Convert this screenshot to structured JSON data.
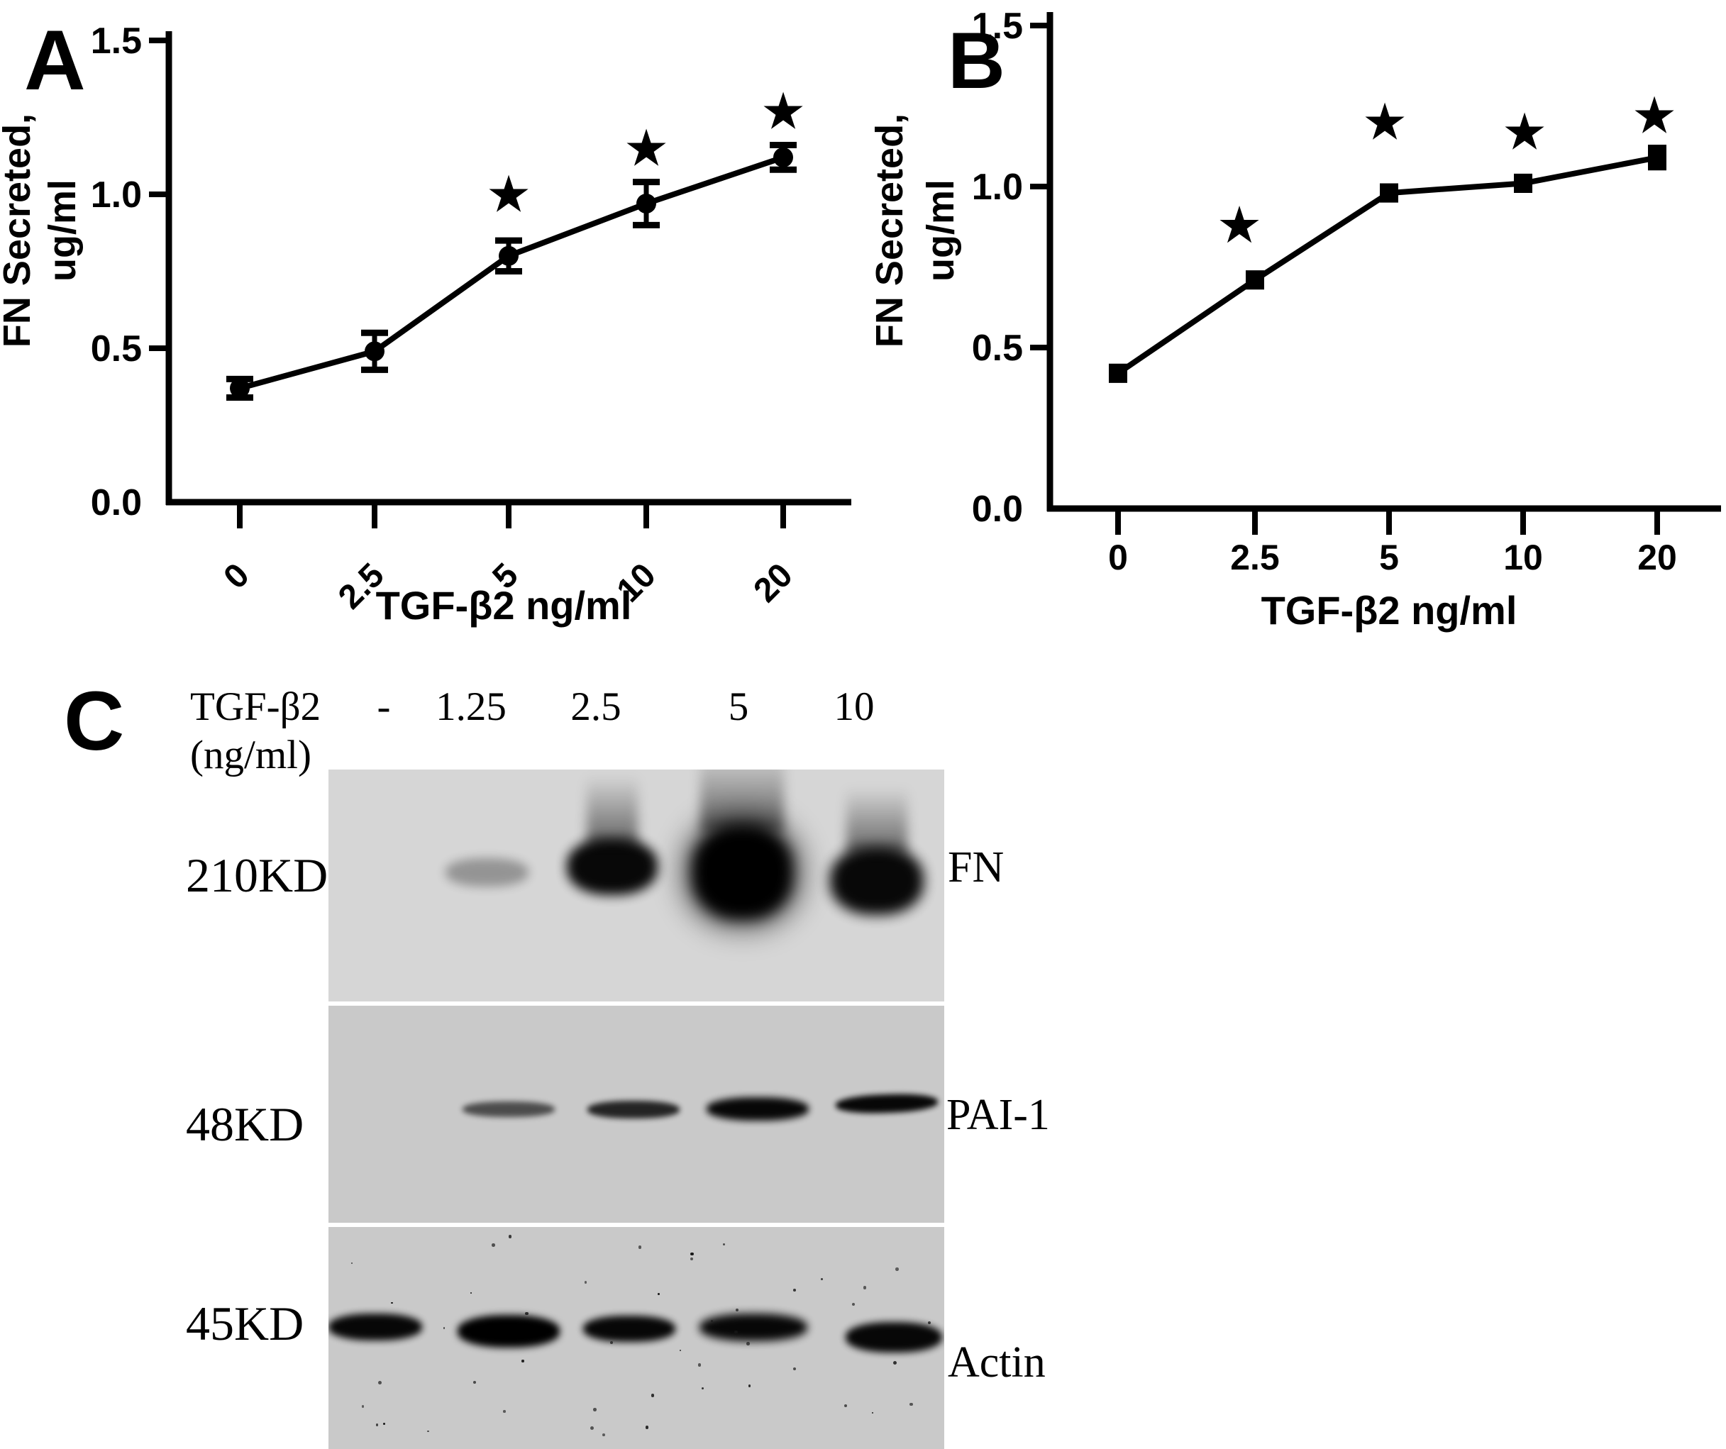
{
  "panels": {
    "A": {
      "label": "A"
    },
    "B": {
      "label": "B"
    },
    "C": {
      "label": "C",
      "treatment_label": "TGF-β2",
      "treatment_unit": "(ng/ml)",
      "doses": [
        "-",
        "1.25",
        "2.5",
        "5",
        "10"
      ],
      "blots": [
        {
          "marker_weight": "210KD",
          "protein": "FN",
          "background": "#d6d6d6",
          "band_intensities": [
            "none",
            "faint",
            "strong",
            "very-strong",
            "strong"
          ]
        },
        {
          "marker_weight": "48KD",
          "protein": "PAI-1",
          "background": "#c9c9c9",
          "band_intensities": [
            "none",
            "weak",
            "moderate",
            "strong",
            "strong"
          ]
        },
        {
          "marker_weight": "45KD",
          "protein": "Actin",
          "background": "#c9c9c9",
          "band_intensities": [
            "strong",
            "very-strong",
            "strong",
            "strong",
            "strong"
          ]
        }
      ]
    }
  },
  "chart_data": [
    {
      "panel": "A",
      "type": "line",
      "marker": "circle",
      "categories": [
        "0",
        "2.5",
        "5",
        "10",
        "20"
      ],
      "values": [
        0.37,
        0.49,
        0.8,
        0.97,
        1.12
      ],
      "errors": [
        0.03,
        0.06,
        0.05,
        0.07,
        0.04
      ],
      "significance_star_y": [
        null,
        null,
        1.0,
        1.15,
        1.27
      ],
      "xlabel": "TGF-β2 ng/ml",
      "ylabel_line1": "FN Secreted,",
      "ylabel_line2": "ug/ml",
      "ylim": [
        0,
        1.5
      ],
      "ytick_labels": [
        "0.0",
        "0.5",
        "1.0",
        "1.5"
      ],
      "ytick_values": [
        0,
        0.5,
        1.0,
        1.5
      ],
      "x_tick_rotation": 45,
      "grid": false,
      "legend": "none",
      "line_color": "#000000"
    },
    {
      "panel": "B",
      "type": "line",
      "marker": "square",
      "categories": [
        "0",
        "2.5",
        "5",
        "10",
        "20"
      ],
      "values": [
        0.42,
        0.71,
        0.98,
        1.01,
        1.09
      ],
      "errors": [
        0.02,
        0.02,
        0.02,
        0.02,
        0.03
      ],
      "significance_star_y": [
        null,
        0.88,
        1.2,
        1.17,
        1.22
      ],
      "xlabel": "TGF-β2 ng/ml",
      "ylabel_line1": "FN Secreted,",
      "ylabel_line2": "ug/ml",
      "ylim": [
        0,
        1.5
      ],
      "ytick_labels": [
        "0.0",
        "0.5",
        "1.0",
        "1.5"
      ],
      "ytick_values": [
        0,
        0.5,
        1.0,
        1.5
      ],
      "x_tick_rotation": 0,
      "grid": false,
      "legend": "none",
      "line_color": "#000000"
    }
  ],
  "star_glyph": "★"
}
